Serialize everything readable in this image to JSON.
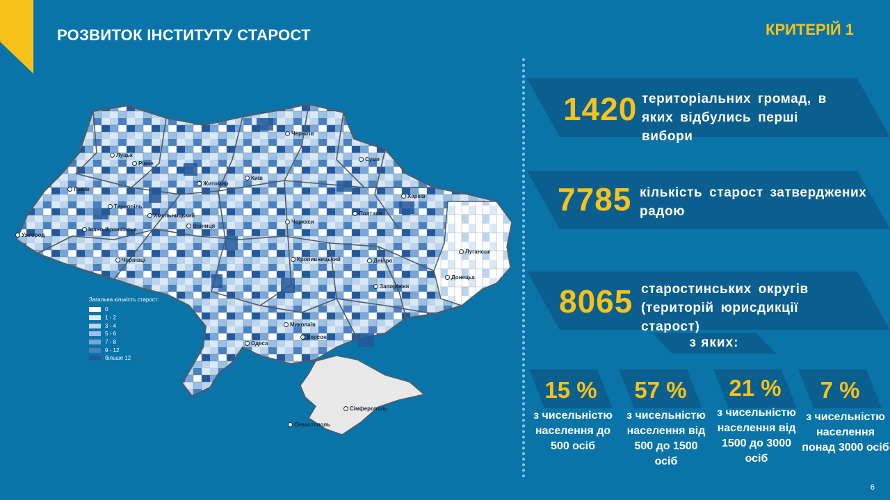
{
  "header": {
    "title": "РОЗВИТОК ІНСТИТУТУ СТАРОСТ",
    "criterion": "КРИТЕРІЙ 1"
  },
  "stats": [
    {
      "number": "1420",
      "text": "територіальних громад, в яких відбулись перші вибори"
    },
    {
      "number": "7785",
      "text": "кількість старост затверджених радою"
    },
    {
      "number": "8065",
      "text": "старостинських округів (територій юрисдикції старост)"
    }
  ],
  "of_which": "з яких:",
  "breakdown": [
    {
      "percent": "15 %",
      "desc": "з чисельністю населення до 500 осіб"
    },
    {
      "percent": "57 %",
      "desc": "з чисельністю населення від 500 до 1500 осіб"
    },
    {
      "percent": "21 %",
      "desc": "з чисельністю населення від 1500 до 3000 осіб"
    },
    {
      "percent": "7 %",
      "desc": "з чисельністю населення понад 3000 осіб"
    }
  ],
  "legend": {
    "title": "Загальна кількість старост:",
    "items": [
      {
        "label": "0",
        "color": "#ffffff"
      },
      {
        "label": "1 - 2",
        "color": "#dbe8f5"
      },
      {
        "label": "3 - 4",
        "color": "#bcd4ec"
      },
      {
        "label": "5 - 6",
        "color": "#9cc0e2"
      },
      {
        "label": "7 - 8",
        "color": "#7aa7d6"
      },
      {
        "label": "9 - 12",
        "color": "#4a80bf"
      },
      {
        "label": "більше 12",
        "color": "#23589a"
      }
    ]
  },
  "cities": [
    "Луцьк",
    "Рівне",
    "Житомир",
    "Київ",
    "Чернігів",
    "Суми",
    "Харків",
    "Львів",
    "Тернопіль",
    "Хмельницький",
    "Вінниця",
    "Черкаси",
    "Полтава",
    "Івано-Франківськ",
    "Ужгород",
    "Чернівці",
    "Луганськ",
    "Донецьк",
    "Кропивницький",
    "Дніпро",
    "Запоріжжя",
    "Миколаїв",
    "Херсон",
    "Одеса",
    "Сімферополь",
    "Севастополь"
  ],
  "page_number": "6",
  "colors": {
    "background": "#0a74a8",
    "band": "#0b5f8f",
    "accent": "#f7c21b",
    "corner": "#f7c21b"
  }
}
